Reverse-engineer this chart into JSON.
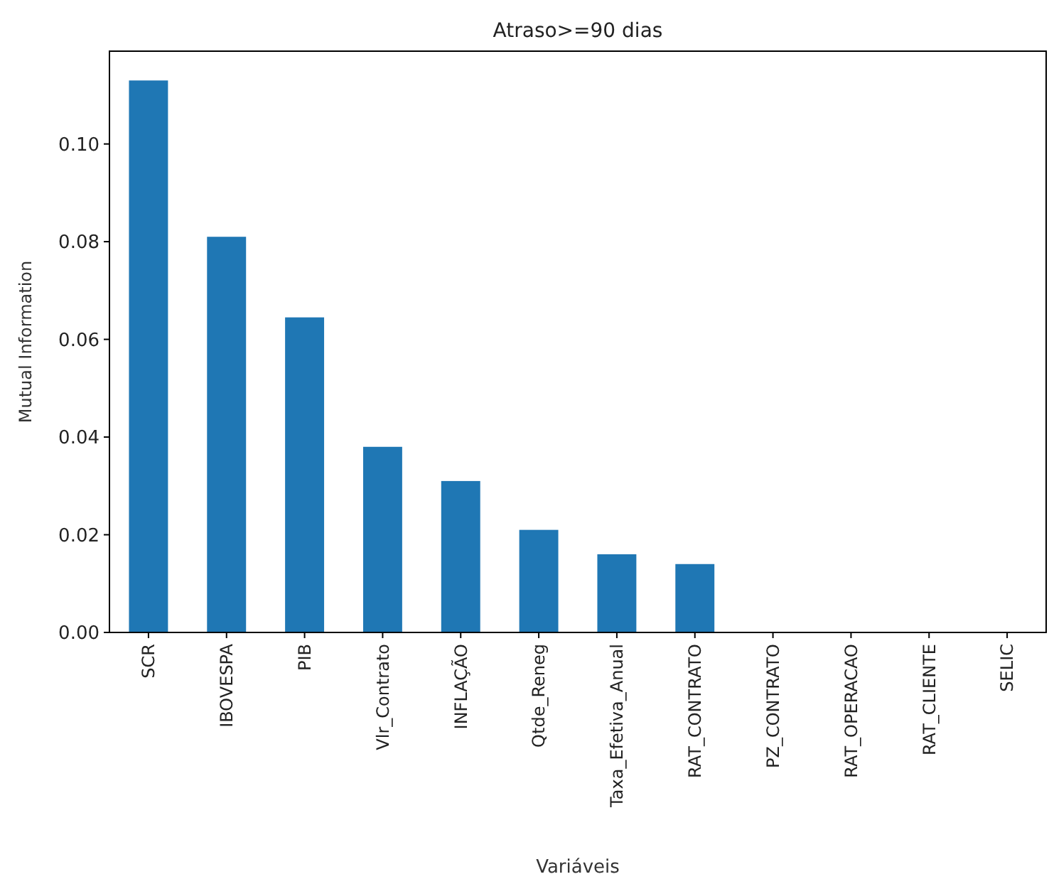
{
  "chart_data": {
    "type": "bar",
    "title": "Atraso>=90 dias",
    "xlabel": "Variáveis",
    "ylabel": "Mutual Information",
    "categories": [
      "SCR",
      "IBOVESPA",
      "PIB",
      "Vlr_Contrato",
      "INFLAÇÃO",
      "Qtde_Reneg",
      "Taxa_Efetiva_Anual",
      "RAT_CONTRATO",
      "PZ_CONTRATO",
      "RAT_OPERACAO",
      "RAT_CLIENTE",
      "SELIC"
    ],
    "values": [
      0.113,
      0.081,
      0.0645,
      0.038,
      0.031,
      0.021,
      0.016,
      0.014,
      0,
      0,
      0,
      0
    ],
    "color": "#1f77b4",
    "ylim": [
      0,
      0.119
    ],
    "yticks": [
      {
        "value": 0,
        "label": "0.00"
      },
      {
        "value": 0.02,
        "label": "0.02"
      },
      {
        "value": 0.04,
        "label": "0.04"
      },
      {
        "value": 0.06,
        "label": "0.06"
      },
      {
        "value": 0.08,
        "label": "0.08"
      },
      {
        "value": 0.1,
        "label": "0.10"
      }
    ],
    "grid": false
  }
}
